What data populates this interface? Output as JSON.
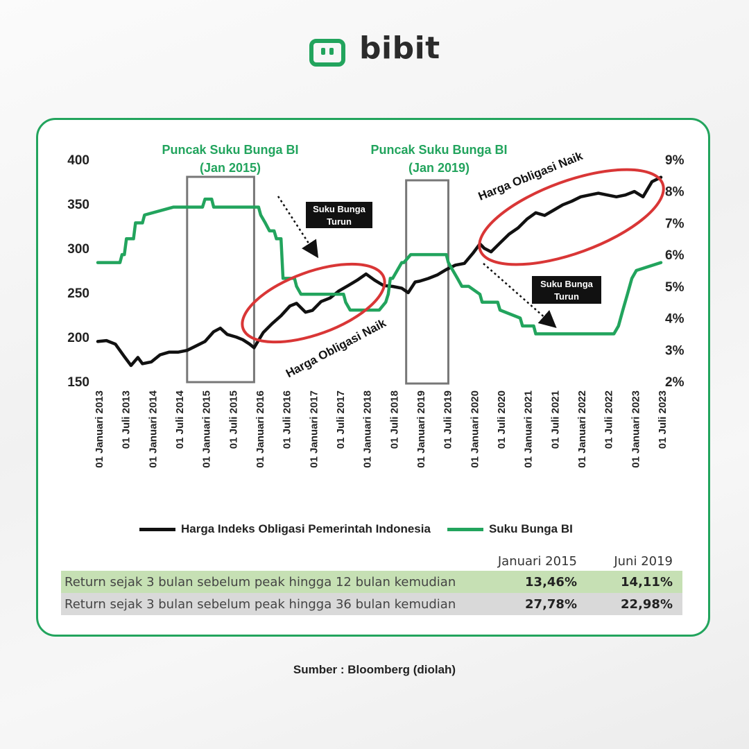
{
  "brand": {
    "name": "bibit",
    "color": "#22a45d"
  },
  "colors": {
    "bond": "#111111",
    "rate": "#22a45d",
    "ellipse": "#d93636",
    "text": "#222222"
  },
  "chart_data": {
    "type": "line",
    "x_ticks": [
      "01 Januari 2013",
      "01 Juli 2013",
      "01 Januari 2014",
      "01 Juli 2014",
      "01 Januari 2015",
      "01 Juli 2015",
      "01 Januari 2016",
      "01 Juli 2016",
      "01 Januari 2017",
      "01 Juli 2017",
      "01 Januari 2018",
      "01 Juli 2018",
      "01 Januari 2019",
      "01 Juli 2019",
      "01 Januari 2020",
      "01 Juli 2020",
      "01 Januari 2021",
      "01 Juli 2021",
      "01 Januari 2022",
      "01 Juli 2022",
      "01 Januari 2023",
      "01 Juli 2023"
    ],
    "ylim_left": [
      150,
      400
    ],
    "yticks_left": [
      "150",
      "200",
      "250",
      "300",
      "350",
      "400"
    ],
    "ylim_right": [
      2,
      9
    ],
    "yticks_right": [
      "2%",
      "3%",
      "4%",
      "5%",
      "6%",
      "7%",
      "8%",
      "9%"
    ],
    "series": [
      {
        "name": "Harga Indeks Obligasi Pemerintah Indonesia",
        "axis": "left",
        "color": "#111111",
        "x": [
          "2013-01-01",
          "2013-03-01",
          "2013-05-01",
          "2013-07-01",
          "2013-08-15",
          "2013-10-01",
          "2013-11-01",
          "2014-01-01",
          "2014-03-01",
          "2014-05-01",
          "2014-07-01",
          "2014-09-01",
          "2014-11-01",
          "2015-01-01",
          "2015-03-01",
          "2015-04-15",
          "2015-06-01",
          "2015-08-01",
          "2015-09-15",
          "2015-11-01",
          "2015-12-01",
          "2016-02-01",
          "2016-04-01",
          "2016-06-01",
          "2016-08-01",
          "2016-09-15",
          "2016-11-15",
          "2017-01-01",
          "2017-03-01",
          "2017-05-01",
          "2017-07-01",
          "2017-09-01",
          "2017-11-01",
          "2018-01-01",
          "2018-03-01",
          "2018-05-01",
          "2018-07-01",
          "2018-09-01",
          "2018-10-15",
          "2018-12-01",
          "2019-01-01",
          "2019-03-01",
          "2019-05-01",
          "2019-07-01",
          "2019-09-01",
          "2019-11-01",
          "2020-01-01",
          "2020-02-15",
          "2020-03-15",
          "2020-05-01",
          "2020-07-01",
          "2020-09-01",
          "2020-11-01",
          "2021-01-01",
          "2021-03-01",
          "2021-05-01",
          "2021-07-01",
          "2021-09-01",
          "2021-11-01",
          "2022-01-01",
          "2022-03-01",
          "2022-05-01",
          "2022-07-01",
          "2022-09-01",
          "2022-11-01",
          "2023-01-01",
          "2023-03-01",
          "2023-05-01",
          "2023-07-01"
        ],
        "values": [
          195,
          196,
          192,
          178,
          168,
          177,
          170,
          172,
          180,
          183,
          183,
          185,
          190,
          195,
          206,
          210,
          203,
          200,
          197,
          192,
          188,
          205,
          215,
          224,
          235,
          238,
          228,
          230,
          240,
          244,
          252,
          258,
          264,
          271,
          264,
          258,
          257,
          255,
          250,
          262,
          263,
          266,
          270,
          276,
          281,
          283,
          295,
          305,
          300,
          296,
          306,
          316,
          323,
          333,
          340,
          337,
          343,
          349,
          353,
          358,
          360,
          362,
          360,
          358,
          360,
          364,
          358,
          375,
          380
        ]
      },
      {
        "name": "Suku Bunga BI",
        "axis": "right",
        "color": "#22a45d",
        "x": [
          "2013-01-01",
          "2013-06-01",
          "2013-06-15",
          "2013-07-01",
          "2013-07-15",
          "2013-09-01",
          "2013-09-15",
          "2013-11-01",
          "2013-11-15",
          "2014-06-01",
          "2014-12-15",
          "2015-01-01",
          "2015-02-15",
          "2015-03-01",
          "2015-03-15",
          "2015-12-31",
          "2016-01-15",
          "2016-02-15",
          "2016-03-15",
          "2016-04-15",
          "2016-05-01",
          "2016-06-01",
          "2016-06-15",
          "2016-08-01",
          "2016-09-01",
          "2016-09-15",
          "2016-10-15",
          "2016-11-01",
          "2017-02-01",
          "2017-08-01",
          "2017-08-15",
          "2017-09-15",
          "2017-10-01",
          "2018-04-01",
          "2018-05-15",
          "2018-06-01",
          "2018-06-15",
          "2018-07-01",
          "2018-09-01",
          "2018-09-15",
          "2018-11-01",
          "2018-11-15",
          "2019-01-01",
          "2019-06-01",
          "2019-07-01",
          "2019-07-15",
          "2019-08-15",
          "2019-09-15",
          "2019-10-15",
          "2019-12-01",
          "2020-02-15",
          "2020-03-01",
          "2020-06-15",
          "2020-07-01",
          "2020-11-15",
          "2020-12-01",
          "2021-02-15",
          "2021-03-01",
          "2022-07-01",
          "2022-08-15",
          "2022-09-15",
          "2022-10-15",
          "2022-11-15",
          "2022-12-15",
          "2023-01-15",
          "2023-07-01"
        ],
        "values": [
          5.75,
          5.75,
          6.0,
          6.0,
          6.5,
          6.5,
          7.0,
          7.0,
          7.25,
          7.5,
          7.5,
          7.75,
          7.75,
          7.5,
          7.5,
          7.5,
          7.25,
          7.0,
          6.75,
          6.75,
          6.5,
          6.5,
          5.25,
          5.25,
          5.25,
          5.0,
          4.75,
          4.75,
          4.75,
          4.75,
          4.5,
          4.25,
          4.25,
          4.25,
          4.5,
          4.75,
          5.25,
          5.25,
          5.75,
          5.75,
          6.0,
          6.0,
          6.0,
          6.0,
          6.0,
          5.75,
          5.5,
          5.25,
          5.0,
          5.0,
          4.75,
          4.5,
          4.5,
          4.25,
          4.0,
          3.75,
          3.75,
          3.5,
          3.5,
          3.5,
          3.75,
          4.25,
          4.75,
          5.25,
          5.5,
          5.75
        ]
      }
    ],
    "annotations": {
      "peak1": [
        "Puncak Suku Bunga BI",
        "(Jan 2015)"
      ],
      "peak2": [
        "Puncak Suku Bunga BI",
        "(Jan 2019)"
      ],
      "rate_down_1": [
        "Suku Bunga",
        "Turun"
      ],
      "rate_down_2": [
        "Suku Bunga",
        "Turun"
      ],
      "bond_up_1": "Harga Obligasi Naik",
      "bond_up_2": "Harga Obligasi Naik"
    }
  },
  "legend": {
    "bond": "Harga Indeks Obligasi Pemerintah Indonesia",
    "rate": "Suku Bunga BI"
  },
  "summary_table": {
    "columns": [
      "Januari 2015",
      "Juni 2019"
    ],
    "rows": [
      {
        "label": "Return sejak 3 bulan sebelum peak hingga 12 bulan kemudian",
        "values": [
          "13,46%",
          "14,11%"
        ]
      },
      {
        "label": "Return sejak 3 bulan sebelum peak hingga 36 bulan kemudian",
        "values": [
          "27,78%",
          "22,98%"
        ]
      }
    ]
  },
  "source": "Sumber : Bloomberg (diolah)"
}
